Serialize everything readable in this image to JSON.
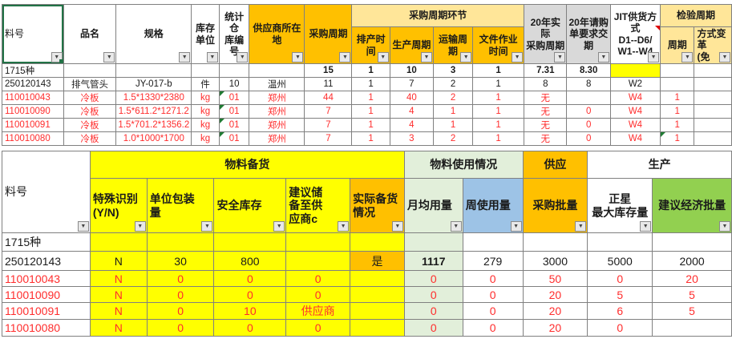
{
  "app": {
    "kind": "spreadsheet-view"
  },
  "colors": {
    "header_orange": "#FFC000",
    "banner_gold": "#FFE699",
    "header_gray": "#D9D9D9",
    "stock_yellow": "#FFFF00",
    "usage_light_green": "#E2EFDA",
    "weekly_blue": "#9DC3E6",
    "batch_green": "#92D050",
    "red_text": "#FF2D2D",
    "selection_green": "#217346"
  },
  "top_table": {
    "col_bg": [
      "white",
      "white",
      "white",
      "white",
      "white",
      "white",
      "white",
      "white",
      "white",
      "white",
      "white",
      "white",
      "white",
      "white",
      "white",
      "white"
    ],
    "header_rows": [
      [
        {
          "label": "料号",
          "name": "col-part-number",
          "rowspan": 2,
          "bg": "white",
          "filter": true,
          "selected": true,
          "align": "left",
          "bold": false
        },
        {
          "label": "品名",
          "name": "col-product-name",
          "rowspan": 2,
          "bg": "white",
          "filter": true
        },
        {
          "label": "规格",
          "name": "col-specification",
          "rowspan": 2,
          "bg": "white",
          "filter": true
        },
        {
          "label": "库存\n单位",
          "name": "col-stock-unit",
          "rowspan": 2,
          "bg": "white",
          "filter": true
        },
        {
          "label": "统计仓\n库编号",
          "name": "col-warehouse-number",
          "rowspan": 2,
          "bg": "white",
          "filter": true
        },
        {
          "label": "供应商所在地",
          "name": "col-supplier-location",
          "rowspan": 2,
          "bg": "orange",
          "filter": true
        },
        {
          "label": "采购周期",
          "name": "col-purchase-cycle",
          "rowspan": 2,
          "bg": "orange",
          "filter": true
        },
        {
          "label": "采购周期环节",
          "name": "banner-purchase-cycle-stages",
          "colspan": 4,
          "bg": "gold"
        },
        {
          "label": "20年实际\n采购周期",
          "name": "col-actual-purchase-cycle-20",
          "rowspan": 2,
          "bg": "gray",
          "filter": true
        },
        {
          "label": "20年请购\n单要求交期",
          "name": "col-requisition-due-date-20",
          "rowspan": 2,
          "bg": "gray",
          "filter": true
        },
        {
          "label": "JIT供货方式\nD1--D6/\nW1--W4",
          "name": "col-jit-supply-mode",
          "rowspan": 2,
          "bg": "white",
          "filter": true,
          "comment": true
        },
        {
          "label": "检验周期",
          "name": "banner-inspection-cycle",
          "colspan": 2,
          "bg": "gold"
        }
      ],
      [
        {
          "label": "排产时间",
          "name": "col-scheduling-time",
          "bg": "orange",
          "filter": true
        },
        {
          "label": "生产周期",
          "name": "col-production-cycle",
          "bg": "orange",
          "filter": true
        },
        {
          "label": "运输周期",
          "name": "col-transport-cycle",
          "bg": "orange",
          "filter": true
        },
        {
          "label": "文件作业时间",
          "name": "col-document-processing-time",
          "bg": "orange",
          "filter": true
        },
        {
          "label": "周期",
          "name": "col-inspection-period",
          "bg": "gold",
          "filter": true
        },
        {
          "label": "方式变\n革\n(免",
          "name": "col-method-change",
          "bg": "gold",
          "filter": true,
          "align": "left"
        }
      ]
    ],
    "rows": [
      {
        "color": "black",
        "cells": [
          "1715种",
          "",
          "",
          "",
          "",
          "",
          "15",
          "1",
          "10",
          "3",
          "1",
          "7.31",
          "8.30",
          "",
          "",
          ""
        ],
        "flags": {
          "6": [
            "bold"
          ],
          "7": [
            "bold"
          ],
          "8": [
            "bold"
          ],
          "9": [
            "bold"
          ],
          "10": [
            "bold"
          ],
          "11": [
            "bold"
          ],
          "12": [
            "bold"
          ],
          "13": [
            "highlight-yellow"
          ]
        }
      },
      {
        "color": "black",
        "cells": [
          "250120143",
          "排气管头",
          "JY-017-b",
          "件",
          "10",
          "温州",
          "11",
          "1",
          "7",
          "2",
          "1",
          "8",
          "8",
          "W2",
          "",
          ""
        ]
      },
      {
        "color": "red",
        "cells": [
          "110010043",
          "冷板",
          "1.5*1330*2380",
          "kg",
          "01",
          "郑州",
          "44",
          "1",
          "40",
          "2",
          "1",
          "无",
          "",
          "W4",
          "1",
          ""
        ],
        "flags": {
          "4": [
            "note-triangle"
          ]
        }
      },
      {
        "color": "red",
        "cells": [
          "110010090",
          "冷板",
          "1.5*611.2*1271.2",
          "kg",
          "01",
          "郑州",
          "7",
          "1",
          "4",
          "1",
          "1",
          "无",
          "0",
          "W4",
          "1",
          ""
        ],
        "flags": {
          "4": [
            "note-triangle"
          ]
        }
      },
      {
        "color": "red",
        "cells": [
          "110010091",
          "冷板",
          "1.5*701.2*1356.2",
          "kg",
          "01",
          "郑州",
          "7",
          "1",
          "4",
          "1",
          "1",
          "无",
          "0",
          "W4",
          "1",
          ""
        ],
        "flags": {
          "4": [
            "note-triangle"
          ]
        }
      },
      {
        "color": "red",
        "cells": [
          "110010080",
          "冷板",
          "1.0*1000*1700",
          "kg",
          "01",
          "郑州",
          "7",
          "1",
          "3",
          "2",
          "1",
          "无",
          "0",
          "W4",
          "1",
          ""
        ],
        "flags": {
          "4": [
            "note-triangle"
          ],
          "14": [
            "note-triangle"
          ]
        }
      }
    ]
  },
  "bottom_table": {
    "col_bg": [
      "white",
      "yellow",
      "yellow",
      "yellow",
      "yellow",
      "yellow",
      "ltgreen",
      "white",
      "white",
      "white",
      "white"
    ],
    "header_rows": [
      [
        {
          "label": "料号",
          "name": "col-part-number",
          "rowspan": 2,
          "bg": "white",
          "filter": true,
          "align": "left",
          "bold": false
        },
        {
          "label": "物料备货",
          "name": "banner-material-stocking",
          "colspan": 5,
          "bg": "yellow"
        },
        {
          "label": "物料使用情况",
          "name": "banner-material-usage",
          "colspan": 2,
          "bg": "ltgreen"
        },
        {
          "label": "供应",
          "name": "banner-supply",
          "bg": "orange"
        },
        {
          "label": "生产",
          "name": "banner-production",
          "colspan": 2,
          "bg": "white"
        }
      ],
      [
        {
          "label": "特殊识别\n(Y/N)",
          "name": "col-special-id",
          "bg": "yellow",
          "filter": true,
          "align": "left"
        },
        {
          "label": "单位包装\n量",
          "name": "col-unit-pack-qty",
          "bg": "yellow",
          "filter": true,
          "align": "left"
        },
        {
          "label": "安全库存",
          "name": "col-safety-stock",
          "bg": "yellow",
          "filter": true,
          "align": "left"
        },
        {
          "label": "建议储\n备至供\n应商c",
          "name": "col-suggest-stock-at-supplier",
          "bg": "yellow",
          "filter": true,
          "align": "left"
        },
        {
          "label": "实际备货\n情况",
          "name": "col-actual-stocking-status",
          "bg": "orange",
          "filter": true,
          "align": "left"
        },
        {
          "label": "月均用量",
          "name": "col-avg-monthly-usage",
          "bg": "ltgreen",
          "filter": true,
          "align": "left"
        },
        {
          "label": "周使用量",
          "name": "col-weekly-usage",
          "bg": "blue",
          "filter": true,
          "align": "left"
        },
        {
          "label": "采购批量",
          "name": "col-purchase-batch",
          "bg": "orange",
          "filter": true
        },
        {
          "label": "正星\n最大库存量",
          "name": "col-zhengxing-max-stock",
          "bg": "white",
          "filter": true
        },
        {
          "label": "建议经济批量",
          "name": "col-suggested-economic-batch",
          "bg": "green",
          "filter": true
        }
      ]
    ],
    "rows": [
      {
        "color": "black",
        "cells": [
          "1715种",
          "",
          "",
          "",
          "",
          "",
          "",
          "",
          "",
          "",
          ""
        ]
      },
      {
        "color": "black",
        "cells": [
          "250120143",
          "N",
          "30",
          "800",
          "",
          "是",
          "1117",
          "279",
          "3000",
          "5000",
          "2000"
        ],
        "flags": {
          "5": [
            "highlight-orange"
          ],
          "6": [
            "bold"
          ]
        }
      },
      {
        "color": "red",
        "cells": [
          "110010043",
          "N",
          "0",
          "0",
          "0",
          "",
          "0",
          "0",
          "50",
          "0",
          "20"
        ]
      },
      {
        "color": "red",
        "cells": [
          "110010090",
          "N",
          "0",
          "0",
          "0",
          "",
          "0",
          "0",
          "20",
          "5",
          "5"
        ]
      },
      {
        "color": "red",
        "cells": [
          "110010091",
          "N",
          "0",
          "10",
          "供应商",
          "",
          "0",
          "0",
          "20",
          "6",
          "5"
        ]
      },
      {
        "color": "red",
        "cells": [
          "110010080",
          "N",
          "0",
          "0",
          "0",
          "",
          "0",
          "0",
          "20",
          "0",
          ""
        ]
      }
    ]
  }
}
